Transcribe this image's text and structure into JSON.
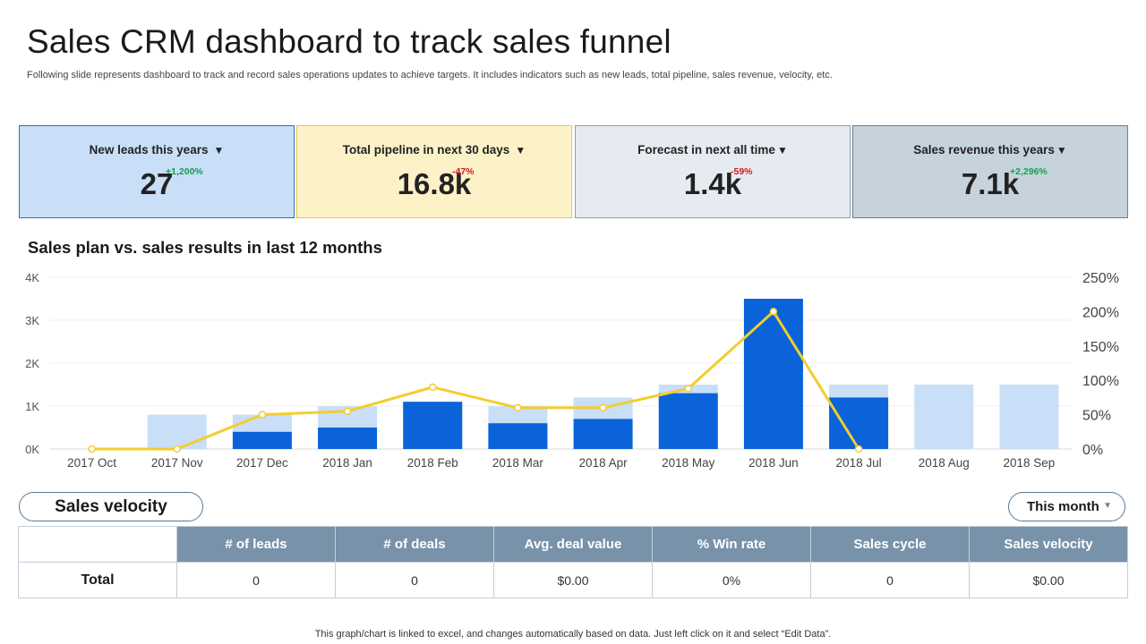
{
  "title": "Sales CRM dashboard to track sales funnel",
  "subtitle": "Following slide represents dashboard to track and record sales operations updates to achieve targets. It includes indicators such as new leads, total pipeline, sales revenue, velocity, etc.",
  "kpis": [
    {
      "label": "New leads this years",
      "value": "27",
      "delta": "+1,200%",
      "trend": "up"
    },
    {
      "label": "Total pipeline in next 30 days",
      "value": "16.8k",
      "delta": "-47%",
      "trend": "down"
    },
    {
      "label": "Forecast in next all time",
      "value": "1.4k",
      "delta": "-59%",
      "trend": "down"
    },
    {
      "label": "Sales revenue this years",
      "value": "7.1k",
      "delta": "+2,296%",
      "trend": "up"
    }
  ],
  "chart_title": "Sales plan vs. sales results in last 12 months",
  "chart_data": {
    "type": "bar",
    "categories": [
      "2017 Oct",
      "2017 Nov",
      "2017 Dec",
      "2018 Jan",
      "2018 Feb",
      "2018 Mar",
      "2018 Apr",
      "2018 May",
      "2018 Jun",
      "2018 Jul",
      "2018 Aug",
      "2018 Sep"
    ],
    "series": [
      {
        "kind": "bar",
        "axis": "left",
        "color": "#c9def7",
        "values": [
          0,
          800,
          800,
          1000,
          1100,
          1000,
          1200,
          1500,
          3500,
          1500,
          1500,
          1500
        ]
      },
      {
        "kind": "bar",
        "axis": "left",
        "color": "#0a63d8",
        "values": [
          0,
          0,
          400,
          500,
          1100,
          600,
          700,
          1300,
          3500,
          1200,
          0,
          0
        ]
      },
      {
        "kind": "line",
        "axis": "right",
        "color": "#f2cd2e",
        "values": [
          0,
          0,
          50,
          55,
          90,
          60,
          60,
          88,
          200,
          0,
          null,
          null
        ]
      }
    ],
    "y_left": {
      "ticks": [
        "0K",
        "1K",
        "2K",
        "3K",
        "4K"
      ],
      "lim": [
        0,
        4000
      ]
    },
    "y_right": {
      "ticks": [
        "0%",
        "50%",
        "100%",
        "150%",
        "200%",
        "250%"
      ],
      "lim": [
        0,
        250
      ]
    },
    "grid": true,
    "legend": "none"
  },
  "velocity": {
    "title": "Sales velocity",
    "period": "This month",
    "columns": [
      "# of leads",
      "# of deals",
      "Avg. deal value",
      "% Win rate",
      "Sales cycle",
      "Sales velocity"
    ],
    "row_label": "Total",
    "row": [
      "0",
      "0",
      "$0.00",
      "0%",
      "0",
      "$0.00"
    ]
  },
  "footnote": "This graph/chart is linked to excel, and changes automatically based on data. Just left click on it and select “Edit Data”."
}
